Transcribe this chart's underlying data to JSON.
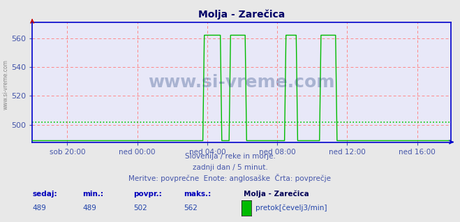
{
  "title": "Molja - Zarečica",
  "bg_color": "#e8e8e8",
  "plot_bg_color": "#e8e8f8",
  "line_color": "#00bb00",
  "avg_line_color": "#00cc00",
  "grid_color_h": "#ff8888",
  "grid_color_v": "#ff8888",
  "axis_color": "#0000cc",
  "ylim": [
    488,
    571
  ],
  "yticks": [
    500,
    520,
    540,
    560
  ],
  "avg_value": 502,
  "tick_color": "#4455aa",
  "xtick_labels": [
    "sob 20:00",
    "ned 00:00",
    "ned 04:00",
    "ned 08:00",
    "ned 12:00",
    "ned 16:00"
  ],
  "xtick_positions": [
    24,
    72,
    120,
    168,
    216,
    264
  ],
  "subtitle1": "Slovenija / reke in morje.",
  "subtitle2": "zadnji dan / 5 minut.",
  "subtitle3": "Meritve: povprečne  Enote: anglosaške  Črta: povprečje",
  "legend_station": "Molja - Zarečica",
  "legend_label": "pretok[čevelj3/min]",
  "stat_labels": [
    "sedaj:",
    "min.:",
    "povpr.:",
    "maks.:"
  ],
  "stat_values": [
    "489",
    "489",
    "502",
    "562"
  ],
  "watermark": "www.si-vreme.com",
  "watermark_left": "www.si-vreme.com",
  "n_points": 288,
  "base_value": 489,
  "spike_value": 562,
  "spike_segments": [
    {
      "start": 118,
      "end": 130
    },
    {
      "start": 136,
      "end": 147
    },
    {
      "start": 174,
      "end": 182
    },
    {
      "start": 198,
      "end": 209
    }
  ]
}
